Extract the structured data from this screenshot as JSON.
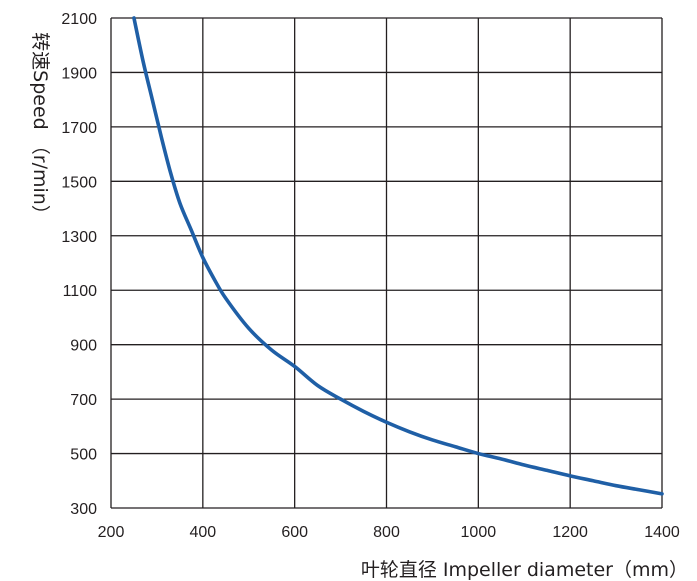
{
  "chart_data": {
    "type": "line",
    "xlabel": "叶轮直径 Impeller diameter（mm）",
    "ylabel": "转速Speed （r/min）",
    "xlim": [
      200,
      1400
    ],
    "ylim": [
      300,
      2100
    ],
    "x_ticks": [
      "200",
      "400",
      "600",
      "800",
      "1000",
      "1200",
      "1400"
    ],
    "y_ticks": [
      "300",
      "500",
      "700",
      "900",
      "1100",
      "1300",
      "1500",
      "1700",
      "1900",
      "2100"
    ],
    "grid": true,
    "series": [
      {
        "color": "#1f5fa6",
        "x": [
          250,
          270,
          290,
          310,
          330,
          350,
          375,
          400,
          425,
          450,
          500,
          550,
          600,
          650,
          700,
          750,
          800,
          850,
          900,
          950,
          1000,
          1050,
          1100,
          1150,
          1200,
          1250,
          1300,
          1350,
          1400
        ],
        "y": [
          2100,
          1940,
          1800,
          1660,
          1530,
          1420,
          1320,
          1220,
          1140,
          1070,
          960,
          880,
          820,
          750,
          700,
          655,
          615,
          580,
          550,
          525,
          500,
          480,
          458,
          438,
          418,
          400,
          382,
          367,
          352
        ]
      }
    ]
  }
}
